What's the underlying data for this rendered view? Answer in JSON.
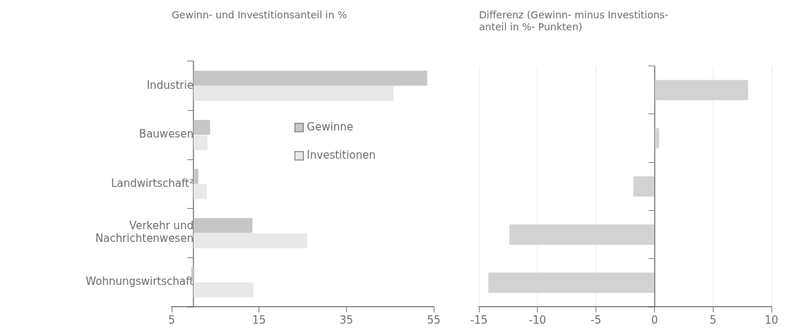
{
  "chart_data": [
    {
      "type": "bar",
      "orientation": "horizontal",
      "title": "Gewinn- und Investitionsanteil in %",
      "categories": [
        "Industrie",
        "Bauwesen",
        "Landwirtschaft²",
        "Verkehr und Nachrichtenwesen",
        "Wohnungswirtschaft"
      ],
      "series": [
        {
          "name": "Gewinne",
          "color": "#c6c6c6",
          "values": [
            53.5,
            3.8,
            1.1,
            13.5,
            -0.5
          ]
        },
        {
          "name": "Investitionen",
          "color": "#e8e8e8",
          "values": [
            45.8,
            3.2,
            3,
            26,
            13.7
          ]
        }
      ],
      "xlim": [
        -5,
        55
      ],
      "xticks": [
        {
          "value": -5,
          "label": "5"
        },
        15,
        35,
        55
      ],
      "grid": false,
      "legend": "right"
    },
    {
      "type": "bar",
      "orientation": "horizontal",
      "title": "Differenz (Gewinn- minus Investitions-\nanteil in %- Punkten)",
      "categories": [
        null,
        null,
        null,
        null,
        null
      ],
      "series": [
        {
          "color": "#d2d2d2",
          "values": [
            8,
            0.4,
            -1.8,
            -12.4,
            -14.2
          ]
        }
      ],
      "xlim": [
        -15,
        10
      ],
      "xticks": [
        -15,
        -10,
        -5,
        0,
        5,
        10
      ],
      "grid": "x"
    }
  ]
}
